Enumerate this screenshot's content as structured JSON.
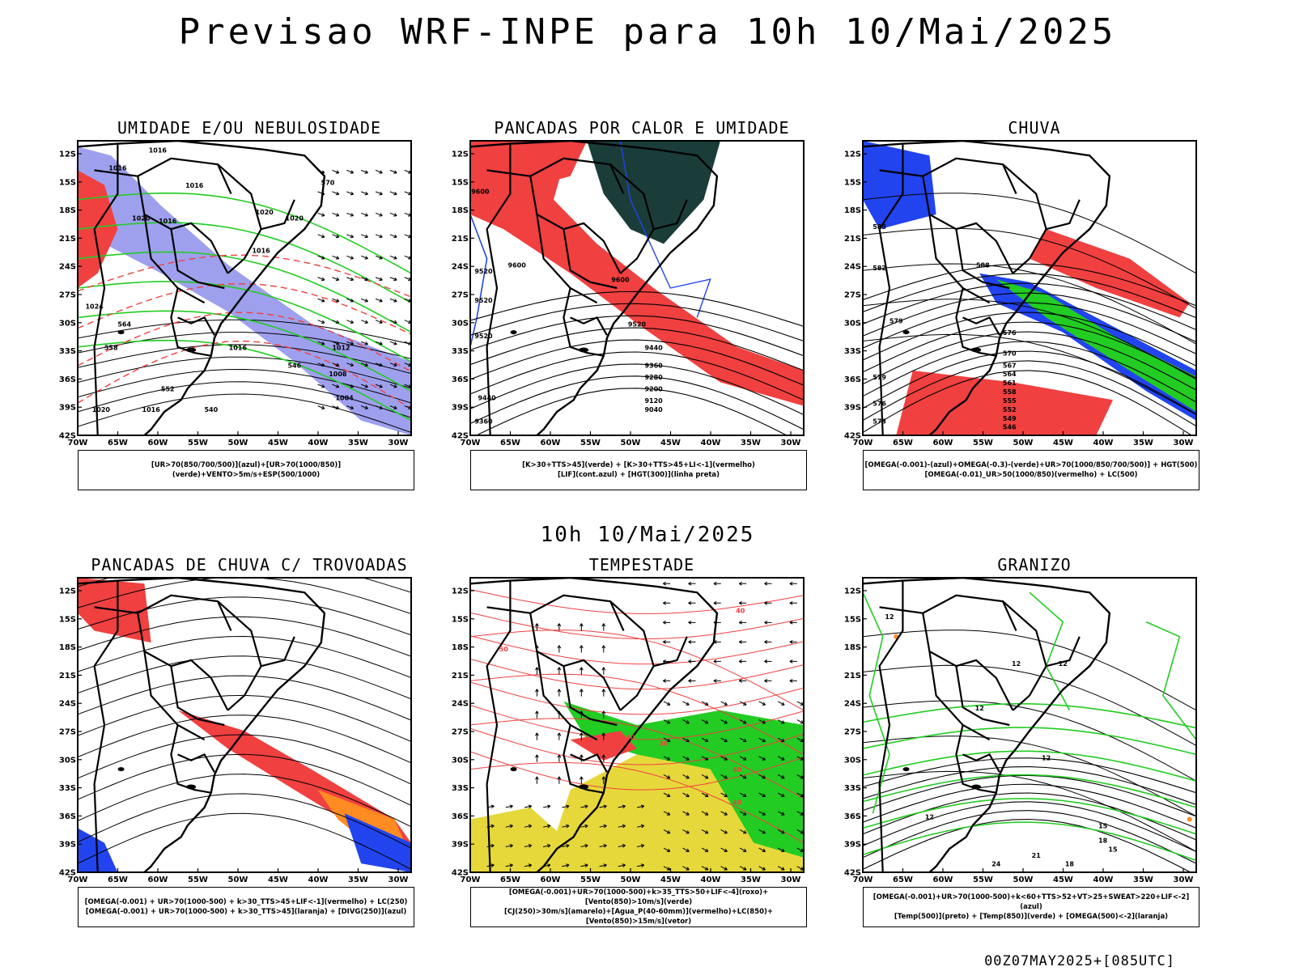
{
  "title": "Previsao WRF-INPE  para 10h 10/Mai/2025",
  "middle_title": "10h 10/Mai/2025",
  "footer": "00Z07MAY2025+[085UTC]",
  "axes": {
    "lat_labels": [
      "12S",
      "15S",
      "18S",
      "21S",
      "24S",
      "27S",
      "30S",
      "33S",
      "36S",
      "39S",
      "42S"
    ],
    "lon_labels": [
      "70W",
      "65W",
      "60W",
      "55W",
      "50W",
      "45W",
      "40W",
      "35W",
      "30W"
    ]
  },
  "colors": {
    "humidity_blue": "#9ea0ee",
    "green": "#22cc22",
    "red": "#f04040",
    "blue": "#2244ee",
    "dark_teal": "#1a3d3a",
    "orange": "#ff8c22",
    "yellow": "#e6d83a"
  },
  "panels": [
    {
      "id": "p1",
      "title": "UMIDADE E/OU NEBULOSIDADE",
      "legend": [
        "[UR>70(850/700/500)](azul)+[UR>70(1000/850)](verde)+VENTO>5m/s+ESP(500/1000)"
      ],
      "labels": [
        "1016",
        "1016",
        "1016",
        "1016",
        "1020",
        "1020",
        "1016",
        "1020",
        "1024",
        "1016",
        "1012",
        "1008",
        "1004",
        "1020",
        "1016",
        "570",
        "564",
        "558",
        "552",
        "546",
        "540"
      ]
    },
    {
      "id": "p2",
      "title": "PANCADAS POR CALOR E UMIDADE",
      "legend": [
        "[K>30+TTS>45](verde) + [K>30+TTS>45+LI<-1](vermelho)",
        "[LIF](cont.azul) + [HGT(300)](linha preta)"
      ],
      "labels": [
        "9600",
        "9520",
        "9600",
        "9520",
        "9520",
        "9600",
        "9520",
        "9440",
        "9360",
        "9280",
        "9200",
        "9120",
        "9040",
        "9440",
        "9360"
      ]
    },
    {
      "id": "p3",
      "title": "CHUVA",
      "legend": [
        "[OMEGA(-0.001)-(azul)+OMEGA(-0.3)-(verde)+UR>70(1000/850/700/500)] + HGT(500)",
        "[OMEGA(-0.01)_UR>50(1000/850)(vermelho) + LC(500)"
      ],
      "labels": [
        "588",
        "585",
        "582",
        "579",
        "576",
        "570",
        "567",
        "564",
        "561",
        "558",
        "555",
        "552",
        "549",
        "546",
        "579",
        "576",
        "573"
      ]
    },
    {
      "id": "p4",
      "title": "PANCADAS DE CHUVA C/ TROVOADAS",
      "legend": [
        "[OMEGA(-0.001) + UR>70(1000-500) + k>30_TTS>45+LIF<-1](vermelho) + LC(250)",
        "[OMEGA(-0.001) + UR>70(1000-500) + k>30_TTS>45](laranja) + [DIVG(250)](azul)"
      ],
      "labels": []
    },
    {
      "id": "p5",
      "title": "TEMPESTADE",
      "legend": [
        "[OMEGA(-0.001)+UR>70(1000-500)+k>35_TTS>50+LIF<-4](roxo)+[Vento(850)>10m/s](verde)",
        "[CJ(250)>30m/s](amarelo)+[Agua_P(40-60mm)](vermelho)+LC(850)+[Vento(850)>15m/s](vetor)"
      ],
      "labels": [
        "40",
        "50",
        "40",
        "30",
        "40",
        "40"
      ]
    },
    {
      "id": "p6",
      "title": "GRANIZO",
      "legend": [
        "[OMEGA(-0.001)+UR>70(1000-500)+k<60+TTS>52+VT>25+SWEAT>220+LIF<-2](azul)",
        "[Temp(500)](preto) + [Temp(850)](verde) + [OMEGA(500)<-2](laranja)"
      ],
      "labels": [
        "12",
        "12",
        "12",
        "12",
        "12",
        "12",
        "15",
        "18",
        "21",
        "24",
        "15",
        "18"
      ]
    }
  ]
}
